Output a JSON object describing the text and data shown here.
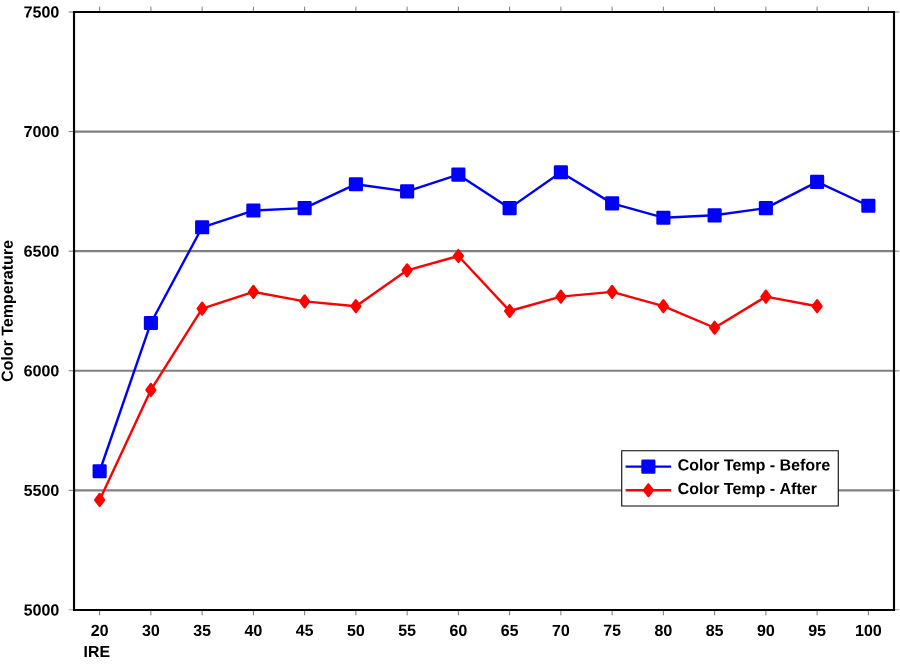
{
  "chart_data": {
    "type": "line",
    "xlabel": "IRE",
    "ylabel": "Color Temperature",
    "categories": [
      "20",
      "30",
      "35",
      "40",
      "45",
      "50",
      "55",
      "60",
      "65",
      "70",
      "75",
      "80",
      "85",
      "90",
      "95",
      "100"
    ],
    "series": [
      {
        "name": "Color Temp - Before",
        "color": "#0000ff",
        "marker": "square",
        "values": [
          5580,
          6200,
          6600,
          6670,
          6680,
          6780,
          6750,
          6820,
          6680,
          6830,
          6700,
          6640,
          6650,
          6680,
          6790,
          6690
        ]
      },
      {
        "name": "Color Temp - After",
        "color": "#ff0000",
        "marker": "diamond",
        "values": [
          5460,
          5920,
          6260,
          6330,
          6290,
          6270,
          6420,
          6480,
          6250,
          6310,
          6330,
          6270,
          6180,
          6310,
          6270,
          null
        ]
      }
    ],
    "ylim": [
      5000,
      7500
    ],
    "yticks": [
      5000,
      5500,
      6000,
      6500,
      7000,
      7500
    ],
    "grid": "y",
    "legend": "bottom right",
    "line_style": "solid"
  }
}
